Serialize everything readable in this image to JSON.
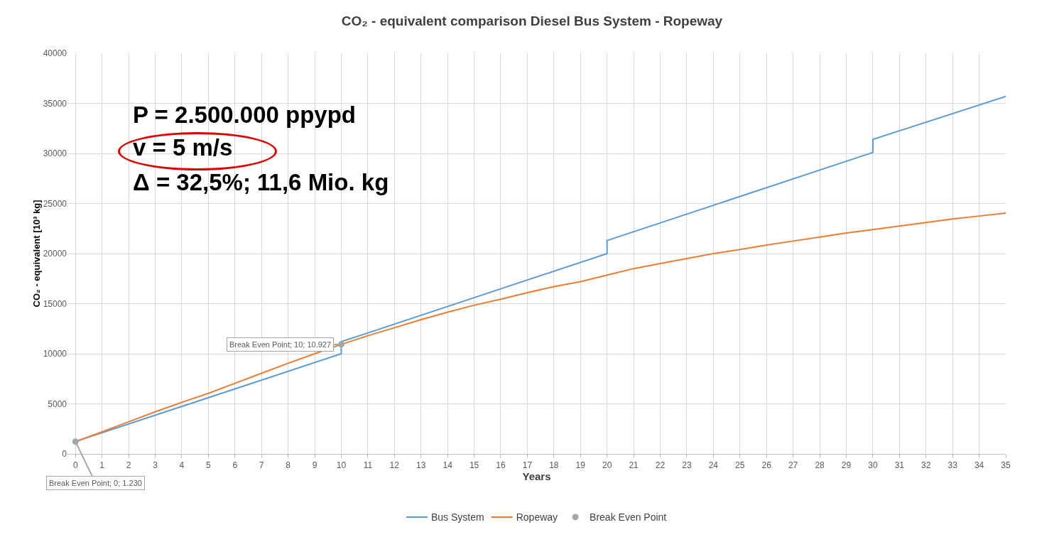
{
  "chart_data": {
    "type": "line",
    "title": "CO₂ - equivalent comparison Diesel Bus System - Ropeway",
    "xlabel": "Years",
    "ylabel": "CO₂ - equivalent [10³ kg]",
    "xlim": [
      -0.3,
      35
    ],
    "xticks": [
      0,
      1,
      2,
      3,
      4,
      5,
      6,
      7,
      8,
      9,
      10,
      11,
      12,
      13,
      14,
      15,
      16,
      17,
      18,
      19,
      20,
      21,
      22,
      23,
      24,
      25,
      26,
      27,
      28,
      29,
      30,
      31,
      32,
      33,
      34,
      35
    ],
    "ylim": [
      0,
      40000
    ],
    "yticks": [
      0,
      5000,
      10000,
      15000,
      20000,
      25000,
      30000,
      35000,
      40000
    ],
    "grid": true,
    "legend": "bottom",
    "line_style": "solid",
    "series": [
      {
        "name": "Bus System",
        "type": "line",
        "marker": "none",
        "color": "#5b9bd5",
        "x": [
          0,
          10,
          10,
          20,
          20,
          30,
          30,
          35
        ],
        "values": [
          1230,
          10000,
          11200,
          20000,
          21300,
          30100,
          31400,
          35700
        ]
      },
      {
        "name": "Ropeway",
        "type": "line",
        "marker": "none",
        "color": "#ed7d31",
        "x": [
          0,
          1,
          2,
          3,
          4,
          5,
          6,
          7,
          8,
          9,
          10,
          11,
          12,
          13,
          14,
          15,
          16,
          17,
          18,
          19,
          20,
          21,
          22,
          23,
          24,
          25,
          26,
          27,
          28,
          29,
          30,
          31,
          32,
          33,
          34,
          35
        ],
        "values": [
          1230,
          2200,
          3200,
          4200,
          5150,
          6050,
          7050,
          8050,
          9050,
          10000,
          10927,
          11800,
          12600,
          13400,
          14150,
          14850,
          15450,
          16100,
          16700,
          17200,
          17850,
          18500,
          19000,
          19500,
          20000,
          20400,
          20850,
          21250,
          21650,
          22050,
          22400,
          22750,
          23100,
          23450,
          23750,
          24050
        ]
      },
      {
        "name": "Break Even Point",
        "type": "scatter",
        "marker": "circle",
        "color": "#a5a5a5",
        "x": [
          0,
          10
        ],
        "values": [
          1230,
          10927
        ]
      }
    ],
    "annotations": [
      {
        "text": "Break Even Point; 0; 1.230",
        "x": 0,
        "y": 1230
      },
      {
        "text": "Break Even Point; 10; 10.927",
        "x": 10,
        "y": 10927
      },
      "P = 2.500.000 ppypd",
      "v = 5 m/s",
      "Δ = 32,5%; 11,6 Mio. kg"
    ]
  }
}
